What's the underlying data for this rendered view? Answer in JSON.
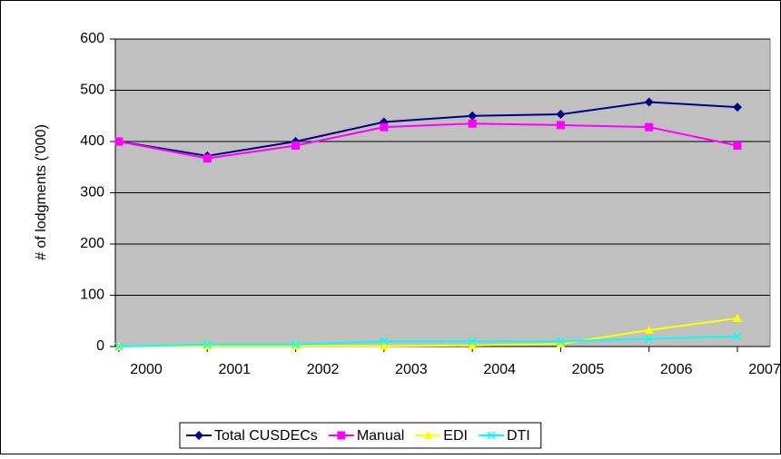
{
  "chart_data": {
    "type": "line",
    "y_label": "# of lodgments ('000)",
    "categories": [
      "2000",
      "2001",
      "2002",
      "2003",
      "2004",
      "2005",
      "2006",
      "2007"
    ],
    "series": [
      {
        "name": "Total CUSDECs",
        "color": "#000080",
        "marker": "diamond",
        "values": [
          400,
          372,
          400,
          438,
          450,
          453,
          477,
          467
        ]
      },
      {
        "name": "Manual",
        "color": "#ff00ff",
        "marker": "square",
        "values": [
          400,
          367,
          392,
          428,
          435,
          432,
          428,
          392
        ]
      },
      {
        "name": "EDI",
        "color": "#ffff00",
        "marker": "triangle",
        "values": [
          0,
          1,
          1,
          1,
          2,
          5,
          32,
          55
        ]
      },
      {
        "name": "DTI",
        "color": "#00ffff",
        "marker": "x",
        "values": [
          0,
          4,
          4,
          10,
          10,
          10,
          15,
          20
        ]
      }
    ],
    "ylim": [
      0,
      600
    ],
    "yticks": [
      0,
      100,
      200,
      300,
      400,
      500,
      600
    ],
    "grid": true,
    "legend": "bottom"
  }
}
